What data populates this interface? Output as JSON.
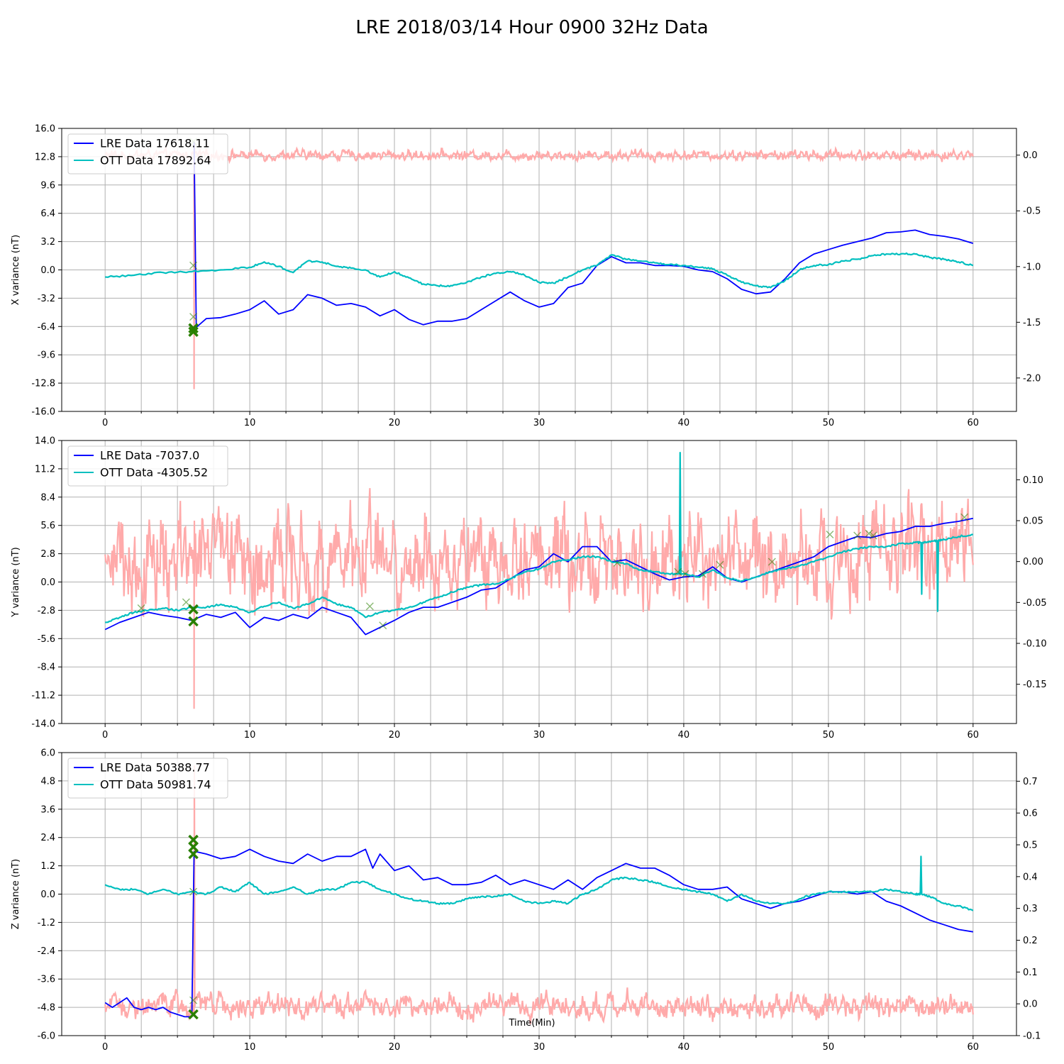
{
  "figure": {
    "title": "LRE 2018/03/14 Hour 0900 32Hz Data",
    "colors": {
      "lre": "#0000ff",
      "ott": "#00bfbf",
      "diff": "#ffaaaa",
      "marker": "#2a7f00",
      "grid": "#b0b0b0"
    }
  },
  "chart_data": [
    {
      "type": "line",
      "ylabel": "X variance (nT)",
      "xlabel": "",
      "xlim": [
        -3,
        63
      ],
      "ylim": [
        -16.0,
        16.0
      ],
      "y2lim": [
        -2.3,
        0.24
      ],
      "x_ticks": [
        "0",
        "10",
        "20",
        "30",
        "40",
        "50",
        "60"
      ],
      "y_ticks": [
        "16.0",
        "12.8",
        "9.6",
        "6.4",
        "3.2",
        "0.0",
        "-3.2",
        "-6.4",
        "-9.6",
        "-12.8",
        "-16.0"
      ],
      "y2_ticks": [
        "0.0",
        "-0.5",
        "-1.0",
        "-1.5",
        "-2.0"
      ],
      "legend": [
        "LRE Data 17618.11",
        "OTT Data 17892.64"
      ],
      "grid": true,
      "series": [
        {
          "name": "LRE Data 17618.11",
          "axis": "left",
          "x": [
            0,
            6.0,
            6.15,
            6.3,
            7,
            8,
            9,
            10,
            11,
            12,
            13,
            14,
            15,
            16,
            17,
            18,
            19,
            20,
            21,
            22,
            23,
            24,
            25,
            26,
            27,
            28,
            29,
            30,
            31,
            32,
            33,
            34,
            35,
            36,
            37,
            38,
            39,
            40,
            41,
            42,
            43,
            44,
            45,
            46,
            47,
            48,
            49,
            50,
            51,
            52,
            53,
            54,
            55,
            56,
            57,
            58,
            59,
            60
          ],
          "y": [
            null,
            null,
            14.5,
            -6.5,
            -5.5,
            -5.4,
            -5.0,
            -4.5,
            -3.5,
            -5.0,
            -4.5,
            -2.8,
            -3.2,
            -4.0,
            -3.8,
            -4.2,
            -5.2,
            -4.5,
            -5.6,
            -6.2,
            -5.8,
            -5.8,
            -5.5,
            -4.5,
            -3.5,
            -2.5,
            -3.5,
            -4.2,
            -3.8,
            -2.0,
            -1.5,
            0.5,
            1.5,
            0.8,
            0.8,
            0.5,
            0.5,
            0.4,
            0.0,
            -0.2,
            -1.0,
            -2.2,
            -2.7,
            -2.5,
            -1.0,
            0.8,
            1.8,
            2.3,
            2.8,
            3.2,
            3.6,
            4.2,
            4.3,
            4.5,
            4.0,
            3.8,
            3.5,
            3.0
          ]
        },
        {
          "name": "OTT Data 17892.64",
          "axis": "left",
          "x": [
            0,
            2,
            4,
            6,
            8,
            10,
            11,
            12,
            13,
            14,
            15,
            16,
            17,
            18,
            19,
            20,
            21,
            22,
            23,
            24,
            25,
            26,
            27,
            28,
            29,
            30,
            31,
            32,
            33,
            34,
            35,
            36,
            37,
            38,
            39,
            40,
            41,
            42,
            43,
            44,
            45,
            46,
            47,
            48,
            49,
            50,
            51,
            52,
            53,
            54,
            55,
            56,
            57,
            58,
            59,
            60
          ],
          "y": [
            -0.8,
            -0.6,
            -0.3,
            -0.2,
            0.0,
            0.3,
            0.9,
            0.4,
            -0.3,
            1.0,
            0.9,
            0.4,
            0.2,
            0.0,
            -0.8,
            -0.2,
            -0.9,
            -1.6,
            -1.8,
            -1.8,
            -1.4,
            -0.8,
            -0.4,
            -0.2,
            -0.6,
            -1.4,
            -1.5,
            -0.8,
            0.0,
            0.5,
            1.7,
            1.2,
            1.0,
            0.8,
            0.6,
            0.5,
            0.3,
            0.1,
            -0.6,
            -1.4,
            -1.8,
            -2.0,
            -1.2,
            0.0,
            0.5,
            0.6,
            1.0,
            1.2,
            1.6,
            1.8,
            1.8,
            1.8,
            1.4,
            1.2,
            0.9,
            0.5
          ]
        },
        {
          "name": "",
          "axis": "right",
          "style": "noise",
          "baseline": 0.0,
          "amplitude": 0.035,
          "spike_x": 6.15,
          "spike_min": -2.1,
          "spike_max": 0.12
        }
      ],
      "markers": [
        {
          "x": 6.1,
          "y": -7.0,
          "size": "large"
        },
        {
          "x": 6.1,
          "y": -6.6,
          "size": "large"
        },
        {
          "x": 6.1,
          "y": 0.5,
          "size": "small"
        },
        {
          "x": 6.1,
          "y": -5.3,
          "size": "small"
        },
        {
          "x": 6.1,
          "y": 14.5,
          "size": "small"
        }
      ]
    },
    {
      "type": "line",
      "ylabel": "Y variance (nT)",
      "xlabel": "",
      "xlim": [
        -3,
        63
      ],
      "ylim": [
        -14.0,
        14.0
      ],
      "y2lim": [
        -0.198,
        0.148
      ],
      "x_ticks": [
        "0",
        "10",
        "20",
        "30",
        "40",
        "50",
        "60"
      ],
      "y_ticks": [
        "14.0",
        "11.2",
        "8.4",
        "5.6",
        "2.8",
        "0.0",
        "-2.8",
        "-5.6",
        "-8.4",
        "-11.2",
        "-14.0"
      ],
      "y2_ticks": [
        "0.10",
        "0.05",
        "0.00",
        "-0.05",
        "-0.10",
        "-0.15"
      ],
      "legend": [
        "LRE Data -7037.0",
        "OTT Data -4305.52"
      ],
      "grid": true,
      "series": [
        {
          "name": "LRE Data -7037.0",
          "axis": "left",
          "x": [
            0,
            1,
            2,
            3,
            4,
            5,
            6,
            7,
            8,
            9,
            10,
            11,
            12,
            13,
            14,
            15,
            16,
            17,
            18,
            19,
            20,
            21,
            22,
            23,
            24,
            25,
            26,
            27,
            28,
            29,
            30,
            31,
            32,
            33,
            34,
            35,
            36,
            37,
            38,
            39,
            40,
            41,
            42,
            43,
            44,
            45,
            46,
            47,
            48,
            49,
            50,
            51,
            52,
            53,
            54,
            55,
            56,
            57,
            58,
            59,
            60
          ],
          "y": [
            -4.7,
            -4.0,
            -3.5,
            -3.0,
            -3.3,
            -3.5,
            -3.8,
            -3.2,
            -3.5,
            -3.0,
            -4.5,
            -3.5,
            -3.8,
            -3.2,
            -3.6,
            -2.5,
            -3.0,
            -3.5,
            -5.2,
            -4.5,
            -3.8,
            -3.0,
            -2.5,
            -2.5,
            -2.0,
            -1.5,
            -0.8,
            -0.6,
            0.3,
            1.2,
            1.5,
            2.8,
            2.0,
            3.5,
            3.5,
            2.0,
            2.2,
            1.5,
            0.8,
            0.2,
            0.5,
            0.6,
            1.5,
            0.4,
            0.0,
            0.5,
            1.0,
            1.5,
            2.0,
            2.5,
            3.5,
            4.0,
            4.5,
            4.4,
            4.8,
            5.0,
            5.5,
            5.5,
            5.8,
            6.0,
            6.3
          ]
        },
        {
          "name": "OTT Data -4305.52",
          "axis": "left",
          "x": [
            0,
            1,
            2,
            3,
            4,
            5,
            6,
            7,
            8,
            9,
            10,
            11,
            12,
            13,
            14,
            15,
            16,
            17,
            18,
            19,
            20,
            21,
            22,
            23,
            24,
            25,
            26,
            27,
            28,
            29,
            30,
            31,
            32,
            33,
            34,
            35,
            36,
            37,
            38,
            39,
            39.7,
            39.75,
            39.8,
            40,
            41,
            42,
            43,
            44,
            45,
            46,
            47,
            48,
            49,
            50,
            51,
            52,
            53,
            54,
            55,
            56,
            56.4,
            56.45,
            56.5,
            57,
            57.5,
            57.55,
            57.6,
            58,
            59,
            60
          ],
          "y": [
            -4.0,
            -3.5,
            -3.0,
            -2.8,
            -2.6,
            -2.8,
            -2.5,
            -2.5,
            -2.2,
            -2.5,
            -3.0,
            -2.4,
            -2.0,
            -2.6,
            -2.2,
            -1.5,
            -2.2,
            -2.5,
            -3.5,
            -3.0,
            -2.8,
            -2.5,
            -2.0,
            -1.5,
            -1.0,
            -0.5,
            -0.3,
            -0.2,
            0.3,
            1.0,
            1.3,
            2.0,
            2.2,
            2.5,
            2.5,
            2.0,
            1.8,
            1.2,
            1.0,
            0.8,
            0.8,
            12.8,
            0.8,
            0.8,
            0.5,
            1.2,
            0.4,
            0.1,
            0.5,
            1.0,
            1.3,
            1.6,
            2.0,
            2.5,
            3.0,
            3.3,
            3.5,
            3.5,
            3.8,
            3.9,
            3.9,
            -1.2,
            3.9,
            4.0,
            4.1,
            -2.9,
            4.1,
            4.2,
            4.5,
            4.7
          ]
        },
        {
          "name": "",
          "axis": "right",
          "style": "noise",
          "baseline": 0.005,
          "amplitude": 0.045,
          "spike_x": 6.15,
          "spike_min": -0.18,
          "spike_max": 0.05
        }
      ],
      "markers": [
        {
          "x": 6.1,
          "y": -3.9,
          "size": "large"
        },
        {
          "x": 6.1,
          "y": -2.7,
          "size": "large"
        },
        {
          "x": 2.5,
          "y": -2.6,
          "size": "small"
        },
        {
          "x": 5.6,
          "y": -2.0,
          "size": "small"
        },
        {
          "x": 18.3,
          "y": -2.4,
          "size": "small"
        },
        {
          "x": 19.2,
          "y": -4.3,
          "size": "small"
        },
        {
          "x": 35.4,
          "y": 1.9,
          "size": "small"
        },
        {
          "x": 39.6,
          "y": 1.0,
          "size": "small"
        },
        {
          "x": 40.1,
          "y": 0.8,
          "size": "small"
        },
        {
          "x": 41.3,
          "y": 0.8,
          "size": "small"
        },
        {
          "x": 42.5,
          "y": 1.7,
          "size": "small"
        },
        {
          "x": 46.1,
          "y": 2.0,
          "size": "small"
        },
        {
          "x": 50.1,
          "y": 4.7,
          "size": "small"
        },
        {
          "x": 52.0,
          "y": 4.6,
          "size": "small"
        },
        {
          "x": 52.8,
          "y": 4.8,
          "size": "small"
        },
        {
          "x": 53.1,
          "y": 4.6,
          "size": "small"
        },
        {
          "x": 59.4,
          "y": 6.4,
          "size": "small"
        }
      ]
    },
    {
      "type": "line",
      "ylabel": "Z variance (nT)",
      "xlabel": "Time(Min)",
      "xlim": [
        -3,
        63
      ],
      "ylim": [
        -6.0,
        6.0
      ],
      "y2lim": [
        -0.1,
        0.79
      ],
      "x_ticks": [
        "0",
        "10",
        "20",
        "30",
        "40",
        "50",
        "60"
      ],
      "y_ticks": [
        "6.0",
        "4.8",
        "3.6",
        "2.4",
        "1.2",
        "0.0",
        "-1.2",
        "-2.4",
        "-3.6",
        "-4.8",
        "-6.0"
      ],
      "y2_ticks": [
        "0.7",
        "0.6",
        "0.5",
        "0.4",
        "0.3",
        "0.2",
        "0.1",
        "0.0",
        "-0.1"
      ],
      "legend": [
        "LRE Data 50388.77",
        "OTT Data 50981.74"
      ],
      "grid": true,
      "series": [
        {
          "name": "LRE Data 50388.77",
          "axis": "left",
          "x": [
            0,
            0.5,
            1,
            1.5,
            2,
            2.5,
            3,
            3.5,
            4,
            4.5,
            5,
            5.5,
            6.0,
            6.15,
            6.3,
            7,
            8,
            9,
            10,
            11,
            12,
            13,
            14,
            15,
            16,
            17,
            18,
            18.5,
            19,
            20,
            21,
            22,
            23,
            24,
            25,
            26,
            27,
            28,
            29,
            30,
            31,
            32,
            33,
            34,
            35,
            36,
            37,
            38,
            39,
            40,
            41,
            42,
            43,
            44,
            45,
            46,
            47,
            48,
            49,
            50,
            51,
            52,
            53,
            54,
            55,
            56,
            57,
            58,
            59,
            60
          ],
          "y": [
            -4.6,
            -4.8,
            -4.6,
            -4.4,
            -4.8,
            -4.9,
            -4.8,
            -4.9,
            -4.8,
            -5.0,
            -5.1,
            -5.2,
            -5.2,
            1.8,
            1.8,
            1.7,
            1.5,
            1.6,
            1.9,
            1.6,
            1.4,
            1.3,
            1.7,
            1.4,
            1.6,
            1.6,
            1.9,
            1.1,
            1.7,
            1.0,
            1.2,
            0.6,
            0.7,
            0.4,
            0.4,
            0.5,
            0.8,
            0.4,
            0.6,
            0.4,
            0.2,
            0.6,
            0.2,
            0.7,
            1.0,
            1.3,
            1.1,
            1.1,
            0.8,
            0.4,
            0.2,
            0.2,
            0.3,
            -0.2,
            -0.4,
            -0.6,
            -0.4,
            -0.3,
            -0.1,
            0.1,
            0.1,
            0.0,
            0.1,
            -0.3,
            -0.5,
            -0.8,
            -1.1,
            -1.3,
            -1.5,
            -1.6
          ]
        },
        {
          "name": "OTT Data 50981.74",
          "axis": "left",
          "x": [
            0,
            1,
            2,
            3,
            4,
            5,
            6,
            7,
            8,
            9,
            10,
            11,
            12,
            13,
            14,
            15,
            16,
            17,
            18,
            19,
            20,
            21,
            22,
            23,
            24,
            25,
            26,
            27,
            28,
            29,
            30,
            31,
            32,
            33,
            34,
            35,
            36,
            37,
            38,
            39,
            40,
            41,
            42,
            43,
            44,
            45,
            46,
            47,
            48,
            49,
            50,
            51,
            52,
            53,
            54,
            55,
            56,
            56.35,
            56.4,
            56.45,
            57,
            58,
            59,
            60
          ],
          "y": [
            0.4,
            0.2,
            0.2,
            0.0,
            0.2,
            0.0,
            0.1,
            0.0,
            0.3,
            0.1,
            0.5,
            0.0,
            0.1,
            0.3,
            0.0,
            0.2,
            0.2,
            0.5,
            0.5,
            0.2,
            0.0,
            -0.2,
            -0.3,
            -0.4,
            -0.4,
            -0.2,
            -0.1,
            -0.1,
            0.0,
            -0.3,
            -0.4,
            -0.3,
            -0.4,
            0.0,
            0.2,
            0.6,
            0.7,
            0.6,
            0.5,
            0.3,
            0.2,
            0.1,
            0.0,
            -0.3,
            0.0,
            -0.3,
            -0.4,
            -0.4,
            -0.2,
            0.0,
            0.1,
            0.1,
            0.1,
            0.1,
            0.2,
            0.1,
            0.0,
            0.0,
            1.6,
            0.0,
            -0.1,
            -0.4,
            -0.5,
            -0.7
          ]
        },
        {
          "name": "",
          "axis": "right",
          "style": "noise",
          "baseline": -0.005,
          "amplitude": 0.03,
          "spike_x": 6.15,
          "spike_min": -0.03,
          "spike_max": 0.75
        }
      ],
      "markers": [
        {
          "x": 6.1,
          "y": -5.1,
          "size": "large"
        },
        {
          "x": 6.1,
          "y": 1.7,
          "size": "large"
        },
        {
          "x": 6.1,
          "y": 2.0,
          "size": "large"
        },
        {
          "x": 6.1,
          "y": 2.3,
          "size": "large"
        },
        {
          "x": 6.1,
          "y": 0.1,
          "size": "small"
        },
        {
          "x": 6.1,
          "y": -4.5,
          "size": "small"
        }
      ]
    }
  ]
}
